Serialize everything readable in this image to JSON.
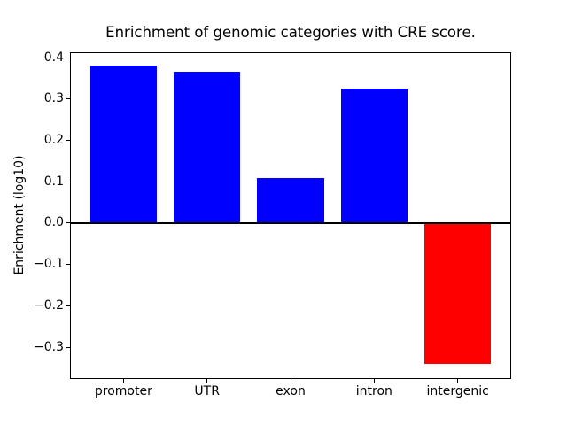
{
  "chart_data": {
    "type": "bar",
    "title": "Enrichment of genomic categories with CRE score.",
    "ylabel": "Enrichment (log10)",
    "xlabel": "",
    "categories": [
      "promoter",
      "UTR",
      "exon",
      "intron",
      "intergenic"
    ],
    "values": [
      0.38,
      0.365,
      0.11,
      0.325,
      -0.34
    ],
    "bar_colors": [
      "#0000ff",
      "#0000ff",
      "#0000ff",
      "#0000ff",
      "#ff0000"
    ],
    "positive_color": "#0000ff",
    "negative_color": "#ff0000",
    "yticks": [
      {
        "value": 0.4,
        "label": "0.4"
      },
      {
        "value": 0.3,
        "label": "0.3"
      },
      {
        "value": 0.2,
        "label": "0.2"
      },
      {
        "value": 0.1,
        "label": "0.1"
      },
      {
        "value": 0.0,
        "label": "0.0"
      },
      {
        "value": -0.1,
        "label": "−0.1"
      },
      {
        "value": -0.2,
        "label": "−0.2"
      },
      {
        "value": -0.3,
        "label": "−0.3"
      }
    ],
    "ylim": [
      -0.377,
      0.413
    ],
    "xlim": [
      -0.64,
      4.64
    ],
    "bar_width": 0.8,
    "grid": false,
    "legend_position": "none",
    "zero_line": true,
    "axis_color": "#000000"
  }
}
